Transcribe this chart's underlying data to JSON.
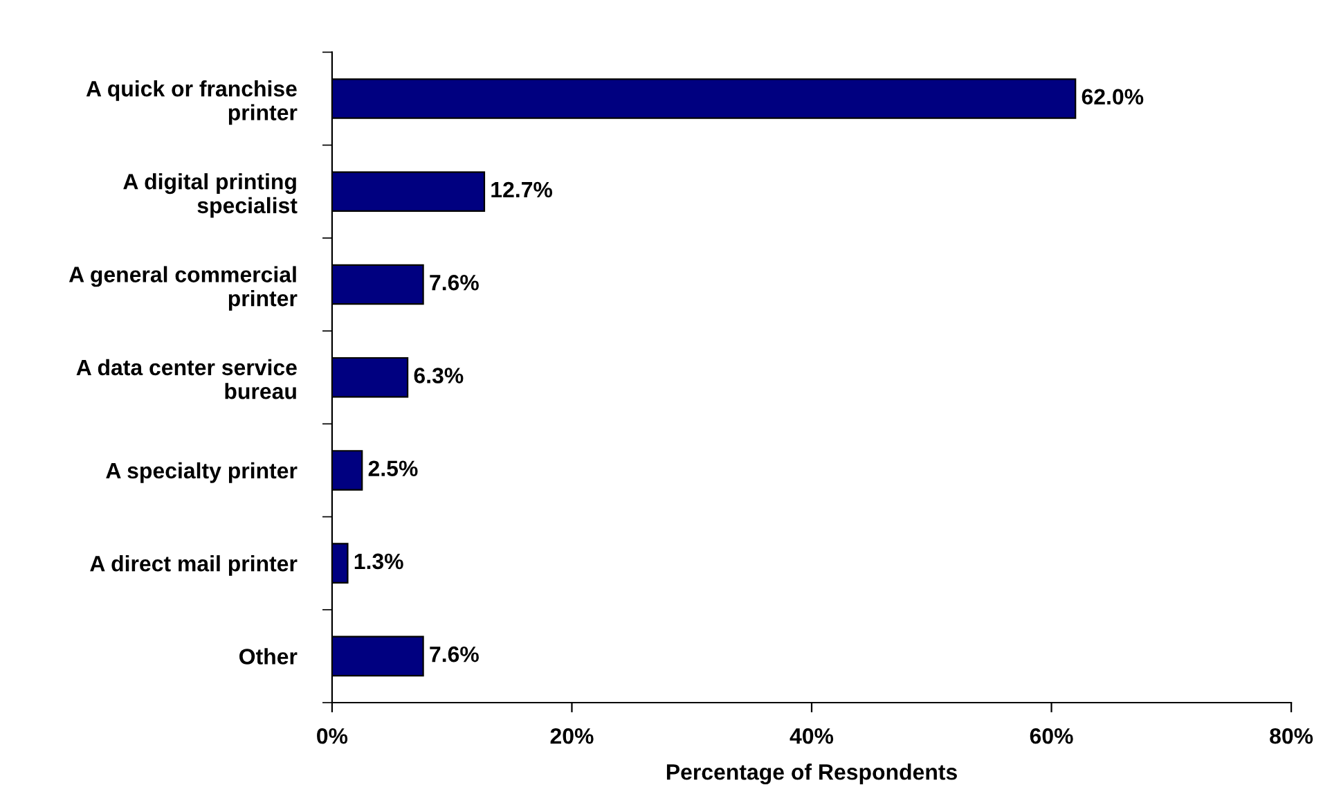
{
  "chart_data": {
    "type": "bar",
    "orientation": "horizontal",
    "categories": [
      "A quick or franchise\nprinter",
      "A digital printing\nspecialist",
      "A general commercial\nprinter",
      "A data center service\nbureau",
      "A specialty printer",
      "A direct mail printer",
      "Other"
    ],
    "values": [
      62.0,
      12.7,
      7.6,
      6.3,
      2.5,
      1.3,
      7.6
    ],
    "value_labels": [
      "62.0%",
      "12.7%",
      "7.6%",
      "6.3%",
      "2.5%",
      "1.3%",
      "7.6%"
    ],
    "color": "#000080",
    "xlabel": "Percentage of Respondents",
    "xlim": [
      0,
      80
    ],
    "xticks": [
      {
        "value": 0,
        "label": "0%"
      },
      {
        "value": 20,
        "label": "20%"
      },
      {
        "value": 40,
        "label": "40%"
      },
      {
        "value": 60,
        "label": "60%"
      },
      {
        "value": 80,
        "label": "80%"
      }
    ],
    "grid": false,
    "legend": false
  }
}
